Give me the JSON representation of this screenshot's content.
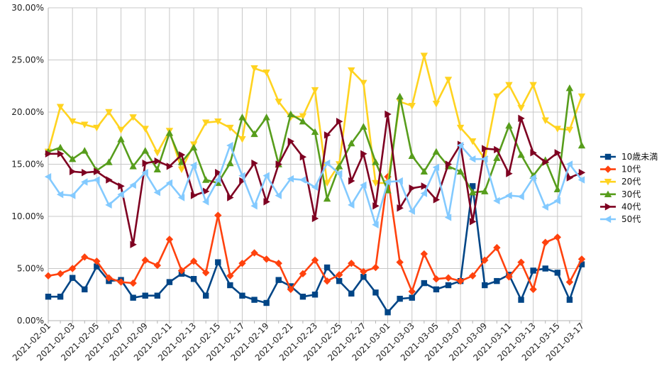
{
  "chart_data": {
    "type": "line",
    "title": "",
    "xlabel": "",
    "ylabel": "",
    "ylim": [
      0,
      30
    ],
    "y_ticks": [
      "0.00%",
      "5.00%",
      "10.00%",
      "15.00%",
      "20.00%",
      "25.00%",
      "30.00%"
    ],
    "y_tick_values": [
      0,
      5,
      10,
      15,
      20,
      25,
      30
    ],
    "x": [
      "2021-02-01",
      "2021-02-02",
      "2021-02-03",
      "2021-02-04",
      "2021-02-05",
      "2021-02-06",
      "2021-02-07",
      "2021-02-08",
      "2021-02-09",
      "2021-02-10",
      "2021-02-11",
      "2021-02-12",
      "2021-02-13",
      "2021-02-14",
      "2021-02-15",
      "2021-02-16",
      "2021-02-17",
      "2021-02-18",
      "2021-02-19",
      "2021-02-20",
      "2021-02-21",
      "2021-02-22",
      "2021-02-23",
      "2021-02-24",
      "2021-02-25",
      "2021-02-26",
      "2021-02-27",
      "2021-02-28",
      "2021-03-01",
      "2021-03-02",
      "2021-03-03",
      "2021-03-04",
      "2021-03-05",
      "2021-03-06",
      "2021-03-07",
      "2021-03-08",
      "2021-03-09",
      "2021-03-10",
      "2021-03-11",
      "2021-03-12",
      "2021-03-13",
      "2021-03-14",
      "2021-03-15",
      "2021-03-16",
      "2021-03-17"
    ],
    "x_tick_labels": [
      "2021-02-01",
      "2021-02-03",
      "2021-02-05",
      "2021-02-07",
      "2021-02-09",
      "2021-02-11",
      "2021-02-13",
      "2021-02-15",
      "2021-02-17",
      "2021-02-19",
      "2021-02-21",
      "2021-02-23",
      "2021-02-25",
      "2021-02-27",
      "2021-03-01",
      "2021-03-03",
      "2021-03-05",
      "2021-03-07",
      "2021-03-09",
      "2021-03-11",
      "2021-03-13",
      "2021-03-15",
      "2021-03-17"
    ],
    "grid": true,
    "legend_position": "right",
    "series": [
      {
        "name": "10歳未満",
        "color": "#004586",
        "marker": "square",
        "values": [
          2.3,
          2.3,
          4.1,
          3.0,
          5.2,
          3.8,
          3.9,
          2.2,
          2.4,
          2.4,
          3.7,
          4.5,
          4.0,
          2.4,
          5.6,
          3.4,
          2.4,
          2.0,
          1.7,
          3.9,
          3.3,
          2.3,
          2.5,
          5.1,
          3.8,
          2.6,
          4.2,
          2.7,
          0.8,
          2.1,
          2.2,
          3.6,
          3.0,
          3.4,
          3.8,
          12.9,
          3.4,
          3.8,
          4.4,
          2.0,
          4.8,
          5.0,
          4.6,
          2.0,
          5.4
        ]
      },
      {
        "name": "10代",
        "color": "#ff420e",
        "marker": "diamond",
        "values": [
          4.3,
          4.5,
          5.0,
          6.1,
          5.7,
          4.1,
          3.7,
          3.6,
          5.8,
          5.3,
          7.8,
          4.8,
          5.7,
          4.6,
          10.1,
          4.3,
          5.5,
          6.5,
          5.9,
          5.5,
          3.0,
          4.5,
          5.8,
          3.8,
          4.4,
          5.5,
          4.7,
          5.1,
          13.8,
          5.6,
          2.8,
          6.4,
          4.0,
          4.1,
          3.8,
          4.3,
          5.8,
          7.0,
          4.2,
          5.6,
          3.0,
          7.5,
          8.0,
          3.7,
          5.9
        ]
      },
      {
        "name": "20代",
        "color": "#ffd320",
        "marker": "triangle-down",
        "values": [
          16.2,
          20.5,
          19.1,
          18.8,
          18.5,
          20.0,
          18.3,
          19.5,
          18.4,
          16.1,
          18.2,
          14.5,
          16.9,
          19.0,
          19.1,
          18.5,
          17.4,
          24.2,
          23.8,
          21.0,
          19.5,
          19.6,
          22.1,
          13.2,
          15.0,
          24.0,
          22.8,
          13.2,
          13.2,
          21.0,
          20.6,
          25.4,
          20.8,
          23.1,
          18.5,
          17.2,
          15.5,
          21.5,
          22.6,
          20.4,
          22.6,
          19.2,
          18.4,
          18.3,
          21.5
        ]
      },
      {
        "name": "30代",
        "color": "#579d1c",
        "marker": "triangle-up",
        "values": [
          16.2,
          16.6,
          15.5,
          16.3,
          14.4,
          15.2,
          17.4,
          14.8,
          16.3,
          14.5,
          18.0,
          15.2,
          16.6,
          13.5,
          13.2,
          15.1,
          19.5,
          17.9,
          19.5,
          15.0,
          19.8,
          19.1,
          18.1,
          11.7,
          14.8,
          17.0,
          18.6,
          15.2,
          12.5,
          21.5,
          15.8,
          14.3,
          16.2,
          14.8,
          14.3,
          12.3,
          12.4,
          15.6,
          18.7,
          15.9,
          13.9,
          15.4,
          12.6,
          22.3,
          16.8
        ]
      },
      {
        "name": "40代",
        "color": "#7e0021",
        "marker": "triangle-right",
        "values": [
          16.0,
          16.0,
          14.3,
          14.2,
          14.3,
          13.5,
          12.9,
          7.3,
          15.1,
          15.3,
          14.8,
          15.9,
          12.0,
          12.4,
          14.2,
          11.8,
          13.4,
          15.1,
          11.4,
          15.0,
          17.2,
          15.7,
          9.8,
          17.8,
          19.1,
          13.4,
          16.0,
          11.0,
          19.8,
          10.8,
          12.7,
          12.9,
          11.6,
          15.0,
          16.9,
          9.5,
          16.5,
          16.4,
          14.1,
          19.4,
          16.1,
          15.2,
          16.1,
          13.7,
          14.2
        ]
      },
      {
        "name": "50代",
        "color": "#83caff",
        "marker": "triangle-left",
        "values": [
          13.8,
          12.1,
          12.0,
          13.3,
          13.5,
          11.1,
          12.1,
          13.0,
          14.2,
          12.3,
          13.2,
          11.8,
          14.9,
          11.4,
          13.5,
          16.8,
          13.9,
          11.0,
          13.9,
          12.0,
          13.6,
          13.5,
          12.8,
          15.1,
          14.1,
          11.1,
          13.0,
          9.2,
          13.3,
          13.4,
          10.5,
          12.2,
          14.7,
          9.9,
          16.8,
          15.5,
          15.5,
          11.5,
          12.0,
          11.9,
          13.7,
          10.9,
          11.5,
          15.0,
          13.5
        ]
      }
    ]
  }
}
